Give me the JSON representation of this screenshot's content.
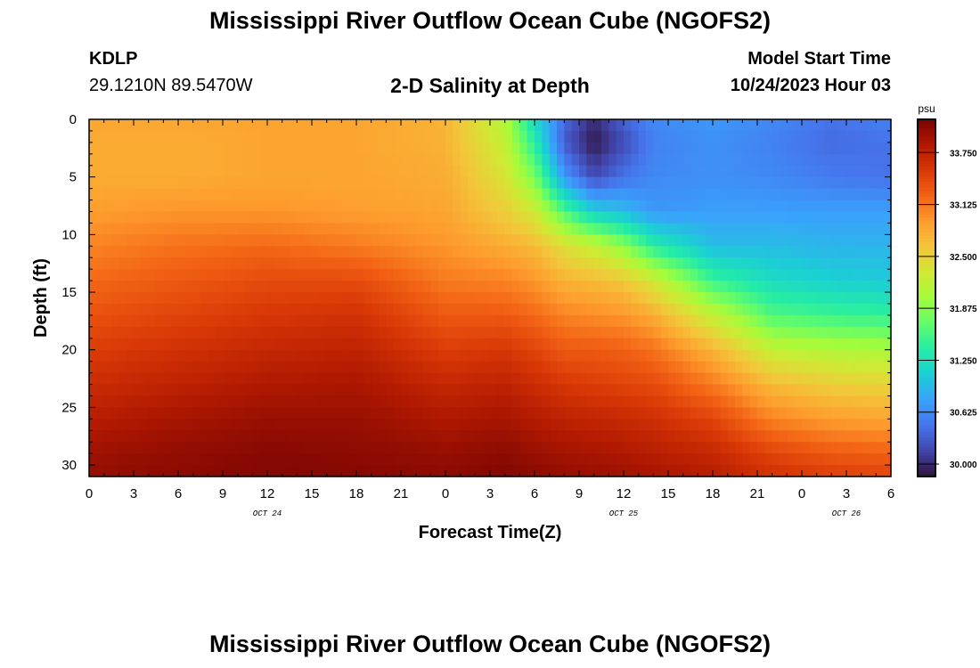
{
  "header": {
    "title": "Mississippi River Outflow Ocean Cube (NGOFS2)",
    "station_id": "KDLP",
    "station_coords": "29.1210N  89.5470W",
    "subtitle": "2-D Salinity at Depth",
    "model_start_label": "Model Start Time",
    "model_start_time": "10/24/2023 Hour 03"
  },
  "footer": {
    "title": "Mississippi River Outflow Ocean Cube (NGOFS2)"
  },
  "chart_data": {
    "type": "heatmap",
    "xlabel": "Forecast Time(Z)",
    "ylabel": "Depth (ft)",
    "x_tick_labels": [
      "0",
      "3",
      "6",
      "9",
      "12",
      "15",
      "18",
      "21",
      "0",
      "3",
      "6",
      "9",
      "12",
      "15",
      "18",
      "21",
      "0",
      "3",
      "6"
    ],
    "x_range_hours": [
      0,
      54
    ],
    "date_labels": [
      {
        "text": "OCT 24",
        "hour": 12
      },
      {
        "text": "OCT 25",
        "hour": 36
      },
      {
        "text": "OCT 26",
        "hour": 51
      }
    ],
    "y_ticks": [
      0,
      5,
      10,
      15,
      20,
      25,
      30
    ],
    "ylim": [
      0,
      31
    ],
    "y_inverted": true,
    "colorbar": {
      "unit": "psu",
      "ticks": [
        33.75,
        33.125,
        32.5,
        31.875,
        31.25,
        30.625,
        30.0
      ],
      "tick_labels": [
        "33.750",
        "33.125",
        "32.500",
        "31.875",
        "31.250",
        "30.625",
        "30.000"
      ],
      "range": [
        29.85,
        34.15
      ],
      "colors": [
        "#30123b",
        "#4145ab",
        "#4675ed",
        "#39a2fc",
        "#1bcfd4",
        "#24eca6",
        "#61fc6c",
        "#a4fc3b",
        "#d1e834",
        "#f3c63a",
        "#fe9b2d",
        "#f36315",
        "#d93806",
        "#b11901",
        "#7a0403"
      ]
    },
    "depth_profiles": {
      "depths_ft": [
        0,
        2,
        5,
        8,
        11,
        14,
        17,
        20,
        23,
        26,
        29,
        31
      ],
      "times_hours": [
        0,
        6,
        12,
        18,
        24,
        28,
        30,
        32,
        34,
        36,
        38,
        42,
        46,
        50,
        54
      ],
      "salinity": [
        [
          32.85,
          32.8,
          32.8,
          32.9,
          33.05,
          33.2,
          33.35,
          33.5,
          33.65,
          33.8,
          33.95,
          34.0
        ],
        [
          32.85,
          32.8,
          32.8,
          32.95,
          33.15,
          33.3,
          33.45,
          33.6,
          33.75,
          33.9,
          34.02,
          34.05
        ],
        [
          32.85,
          32.85,
          32.85,
          32.95,
          33.2,
          33.4,
          33.55,
          33.7,
          33.85,
          33.98,
          34.08,
          34.1
        ],
        [
          32.85,
          32.85,
          32.85,
          32.9,
          33.1,
          33.4,
          33.6,
          33.75,
          33.88,
          33.98,
          34.05,
          34.08
        ],
        [
          32.75,
          32.75,
          32.8,
          32.85,
          32.95,
          33.1,
          33.3,
          33.5,
          33.7,
          33.85,
          34.0,
          34.05
        ],
        [
          32.1,
          32.2,
          32.35,
          32.55,
          32.8,
          33.05,
          33.3,
          33.55,
          33.75,
          33.9,
          34.05,
          34.1
        ],
        [
          31.2,
          31.4,
          31.8,
          32.3,
          32.7,
          32.95,
          33.2,
          33.45,
          33.65,
          33.82,
          33.98,
          34.05
        ],
        [
          30.4,
          30.3,
          30.7,
          31.6,
          32.4,
          32.75,
          33.05,
          33.3,
          33.55,
          33.75,
          33.92,
          34.0
        ],
        [
          30.0,
          29.9,
          30.2,
          31.1,
          32.2,
          32.7,
          33.0,
          33.3,
          33.5,
          33.72,
          33.9,
          33.98
        ],
        [
          30.35,
          30.2,
          30.45,
          30.95,
          31.9,
          32.6,
          32.95,
          33.25,
          33.45,
          33.68,
          33.85,
          33.95
        ],
        [
          30.6,
          30.55,
          30.6,
          30.7,
          31.4,
          32.3,
          32.8,
          33.15,
          33.4,
          33.62,
          33.8,
          33.9
        ],
        [
          30.7,
          30.65,
          30.65,
          30.75,
          30.95,
          31.5,
          32.2,
          32.75,
          33.1,
          33.45,
          33.7,
          33.8
        ],
        [
          30.6,
          30.55,
          30.6,
          30.75,
          30.95,
          31.2,
          31.6,
          32.2,
          32.7,
          33.05,
          33.45,
          33.6
        ],
        [
          30.45,
          30.4,
          30.5,
          30.75,
          30.9,
          31.1,
          31.5,
          32.1,
          32.55,
          32.9,
          33.3,
          33.5
        ],
        [
          30.55,
          30.45,
          30.45,
          30.75,
          30.9,
          31.05,
          31.45,
          32.05,
          32.5,
          32.85,
          33.25,
          33.45
        ]
      ]
    }
  }
}
